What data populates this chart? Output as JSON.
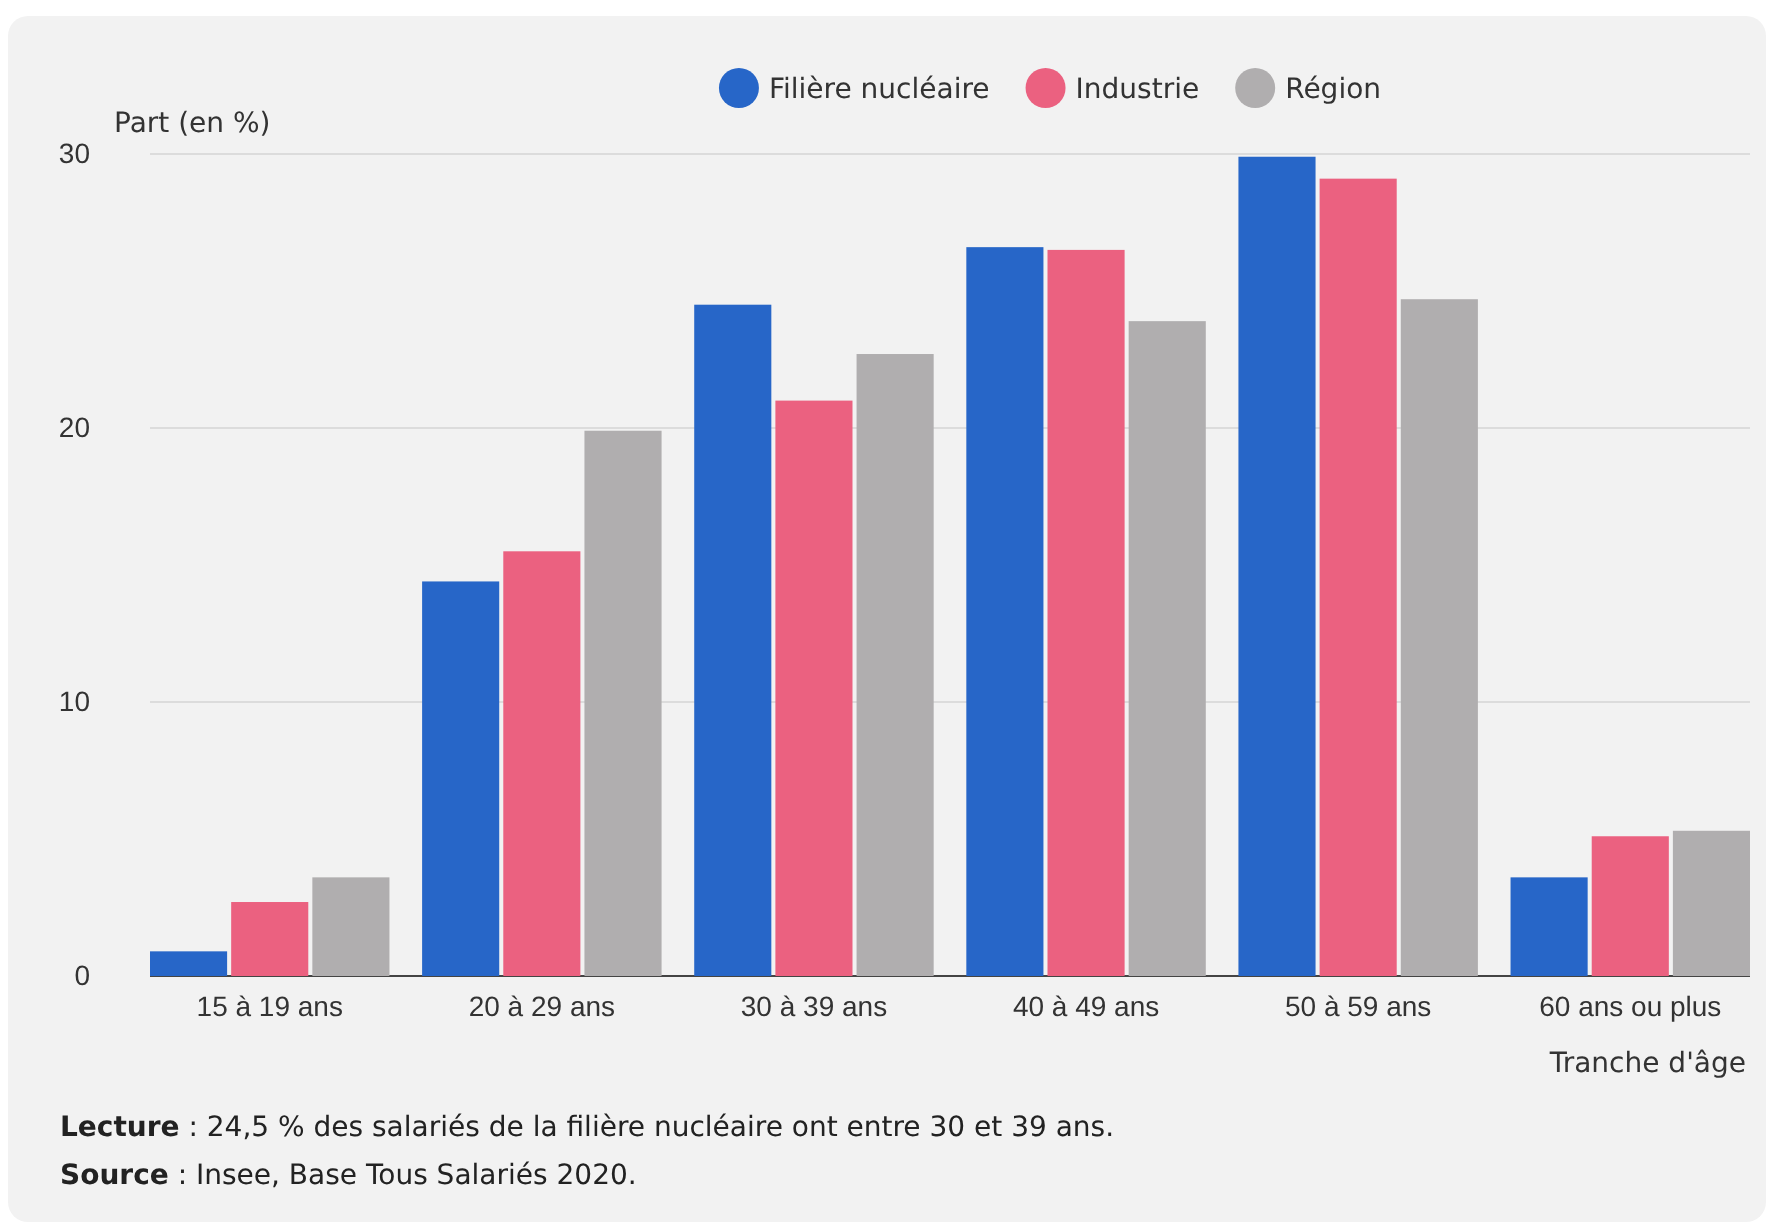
{
  "chart_data": {
    "type": "bar",
    "ylabel": "Part (en %)",
    "xlabel": "Tranche d'âge",
    "categories": [
      "15 à 19 ans",
      "20 à 29 ans",
      "30 à 39 ans",
      "40 à 49 ans",
      "50 à 59 ans",
      "60 ans ou plus"
    ],
    "series": [
      {
        "name": "Filière nucléaire",
        "color": "#2766c8",
        "values": [
          0.9,
          14.4,
          24.5,
          26.6,
          29.9,
          3.6
        ]
      },
      {
        "name": "Industrie",
        "color": "#eb6180",
        "values": [
          2.7,
          15.5,
          21.0,
          26.5,
          29.1,
          5.1
        ]
      },
      {
        "name": "Région",
        "color": "#b0aeaf",
        "values": [
          3.6,
          19.9,
          22.7,
          23.9,
          24.7,
          5.3
        ]
      }
    ],
    "ylim": [
      0,
      30
    ],
    "yticks": [
      0,
      10,
      20,
      30
    ],
    "grid": "y",
    "legend": "top",
    "annotations": [
      "Lecture : 24,5 % des salariés de la filière nucléaire ont entre 30 et 39 ans.",
      "Source : Insee, Base Tous Salariés 2020."
    ]
  }
}
